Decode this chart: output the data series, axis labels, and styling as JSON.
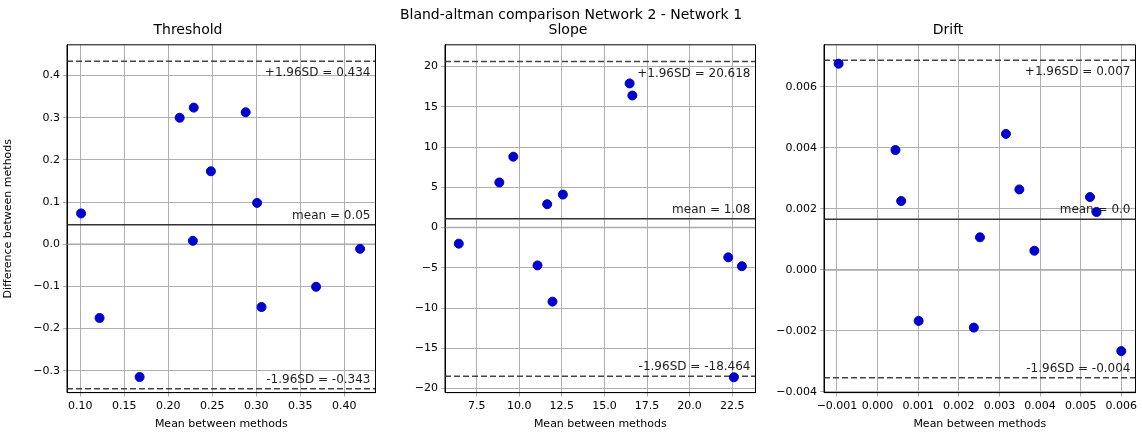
{
  "chart_data": [
    {
      "type": "scatter",
      "title": "Threshold",
      "xlabel": "Mean between methods",
      "ylabel": "Difference between methods",
      "annotations": [
        "Bland-altman comparison Network 2 - Network 1"
      ],
      "x": [
        0.101,
        0.122,
        0.1675,
        0.213,
        0.229,
        0.228,
        0.2485,
        0.288,
        0.301,
        0.306,
        0.368,
        0.418
      ],
      "series": [
        {
          "color": "#0000cc",
          "values": [
            0.073,
            -0.175,
            -0.315,
            0.3,
            0.324,
            0.008,
            0.173,
            0.313,
            0.098,
            -0.149,
            -0.101,
            -0.011
          ]
        }
      ],
      "xlim": [
        0.085,
        0.4355
      ],
      "xticks": [
        {
          "value": 0.1,
          "label": "0.10"
        },
        0.15,
        {
          "value": 0.2,
          "label": "0.20"
        },
        0.25,
        {
          "value": 0.3,
          "label": "0.30"
        },
        0.35,
        {
          "value": 0.4,
          "label": "0.40"
        }
      ],
      "ylim": [
        -0.352,
        0.473
      ],
      "yticks": [
        {
          "value": -0.3,
          "label": "−0.3"
        },
        {
          "value": -0.2,
          "label": "−0.2"
        },
        {
          "value": -0.1,
          "label": "−0.1"
        },
        {
          "value": 0,
          "label": "0.0"
        },
        0.1,
        0.2,
        0.3,
        0.4
      ],
      "ref_lines": [
        {
          "axis": "y",
          "value": 0,
          "color": "#aaaaaa",
          "line_style": "solid"
        },
        {
          "axis": "y",
          "value": 0.434,
          "label": "+1.96SD = 0.434",
          "color": "#444444",
          "line_style": "dashed"
        },
        {
          "axis": "y",
          "value": 0.046,
          "label": "mean = 0.05",
          "color": "#333333",
          "line_style": "solid"
        },
        {
          "axis": "y",
          "value": -0.343,
          "label": "-1.96SD = -0.343",
          "color": "#444444",
          "line_style": "dashed"
        }
      ],
      "grid": true,
      "marker": "circle",
      "legend": false
    },
    {
      "type": "scatter",
      "title": "Slope",
      "xlabel": "Mean between methods",
      "x": [
        6.45,
        8.83,
        9.65,
        11.07,
        11.64,
        11.95,
        12.56,
        16.48,
        16.64,
        22.27,
        22.6,
        23.07
      ],
      "series": [
        {
          "color": "#0000cc",
          "values": [
            -2.0,
            5.6,
            8.8,
            -4.7,
            2.9,
            -9.2,
            4.1,
            17.9,
            16.4,
            -3.7,
            -18.6,
            -4.8
          ]
        }
      ],
      "xlim": [
        5.64,
        23.87
      ],
      "xticks": [
        7.5,
        {
          "value": 10,
          "label": "10.0"
        },
        12.5,
        {
          "value": 15,
          "label": "15.0"
        },
        17.5,
        {
          "value": 20,
          "label": "20.0"
        },
        22.5
      ],
      "ylim": [
        -20.5,
        22.7
      ],
      "yticks": [
        {
          "value": -20,
          "label": "−20"
        },
        {
          "value": -15,
          "label": "−15"
        },
        {
          "value": -10,
          "label": "−10"
        },
        {
          "value": -5,
          "label": "−5"
        },
        0,
        5,
        10,
        15,
        20
      ],
      "ref_lines": [
        {
          "axis": "y",
          "value": 0,
          "color": "#aaaaaa",
          "line_style": "solid"
        },
        {
          "axis": "y",
          "value": 20.618,
          "label": "+1.96SD = 20.618",
          "color": "#444444",
          "line_style": "dashed"
        },
        {
          "axis": "y",
          "value": 1.08,
          "label": "mean = 1.08",
          "color": "#333333",
          "line_style": "solid"
        },
        {
          "axis": "y",
          "value": -18.464,
          "label": "-1.96SD = -18.464",
          "color": "#444444",
          "line_style": "dashed"
        }
      ],
      "grid": true,
      "marker": "circle",
      "legend": false
    },
    {
      "type": "scatter",
      "title": "Drift",
      "xlabel": "Mean between methods",
      "x": [
        -0.00096,
        0.00044,
        0.00058,
        0.00101,
        0.00237,
        0.00252,
        0.00316,
        0.00349,
        0.00386,
        0.00523,
        0.00539,
        0.006
      ],
      "series": [
        {
          "color": "#0000cc",
          "values": [
            0.00676,
            0.00393,
            0.00226,
            -0.00167,
            -0.00189,
            0.00107,
            0.00446,
            0.00264,
            0.00063,
            0.00239,
            0.0019,
            -0.00266
          ]
        }
      ],
      "xlim": [
        -0.00132,
        0.00635
      ],
      "xticks": [
        {
          "value": -0.001,
          "label": "−0.001"
        },
        {
          "value": 0,
          "label": "0.000"
        },
        0.001,
        0.002,
        0.003,
        0.004,
        0.005,
        0.006
      ],
      "ylim": [
        -0.00402,
        0.00738
      ],
      "yticks": [
        {
          "value": -0.004,
          "label": "−0.004"
        },
        {
          "value": -0.002,
          "label": "−0.002"
        },
        {
          "value": 0,
          "label": "0.000"
        },
        0.002,
        0.004,
        0.006
      ],
      "ref_lines": [
        {
          "axis": "y",
          "value": 0,
          "color": "#aaaaaa",
          "line_style": "solid"
        },
        {
          "axis": "y",
          "value": 0.00687,
          "label": "+1.96SD = 0.007",
          "color": "#444444",
          "line_style": "dashed"
        },
        {
          "axis": "y",
          "value": 0.00166,
          "label": "mean = 0.0",
          "color": "#333333",
          "line_style": "solid"
        },
        {
          "axis": "y",
          "value": -0.00353,
          "label": "-1.96SD = -0.004",
          "color": "#444444",
          "line_style": "dashed"
        }
      ],
      "grid": true,
      "marker": "circle",
      "legend": false
    }
  ]
}
